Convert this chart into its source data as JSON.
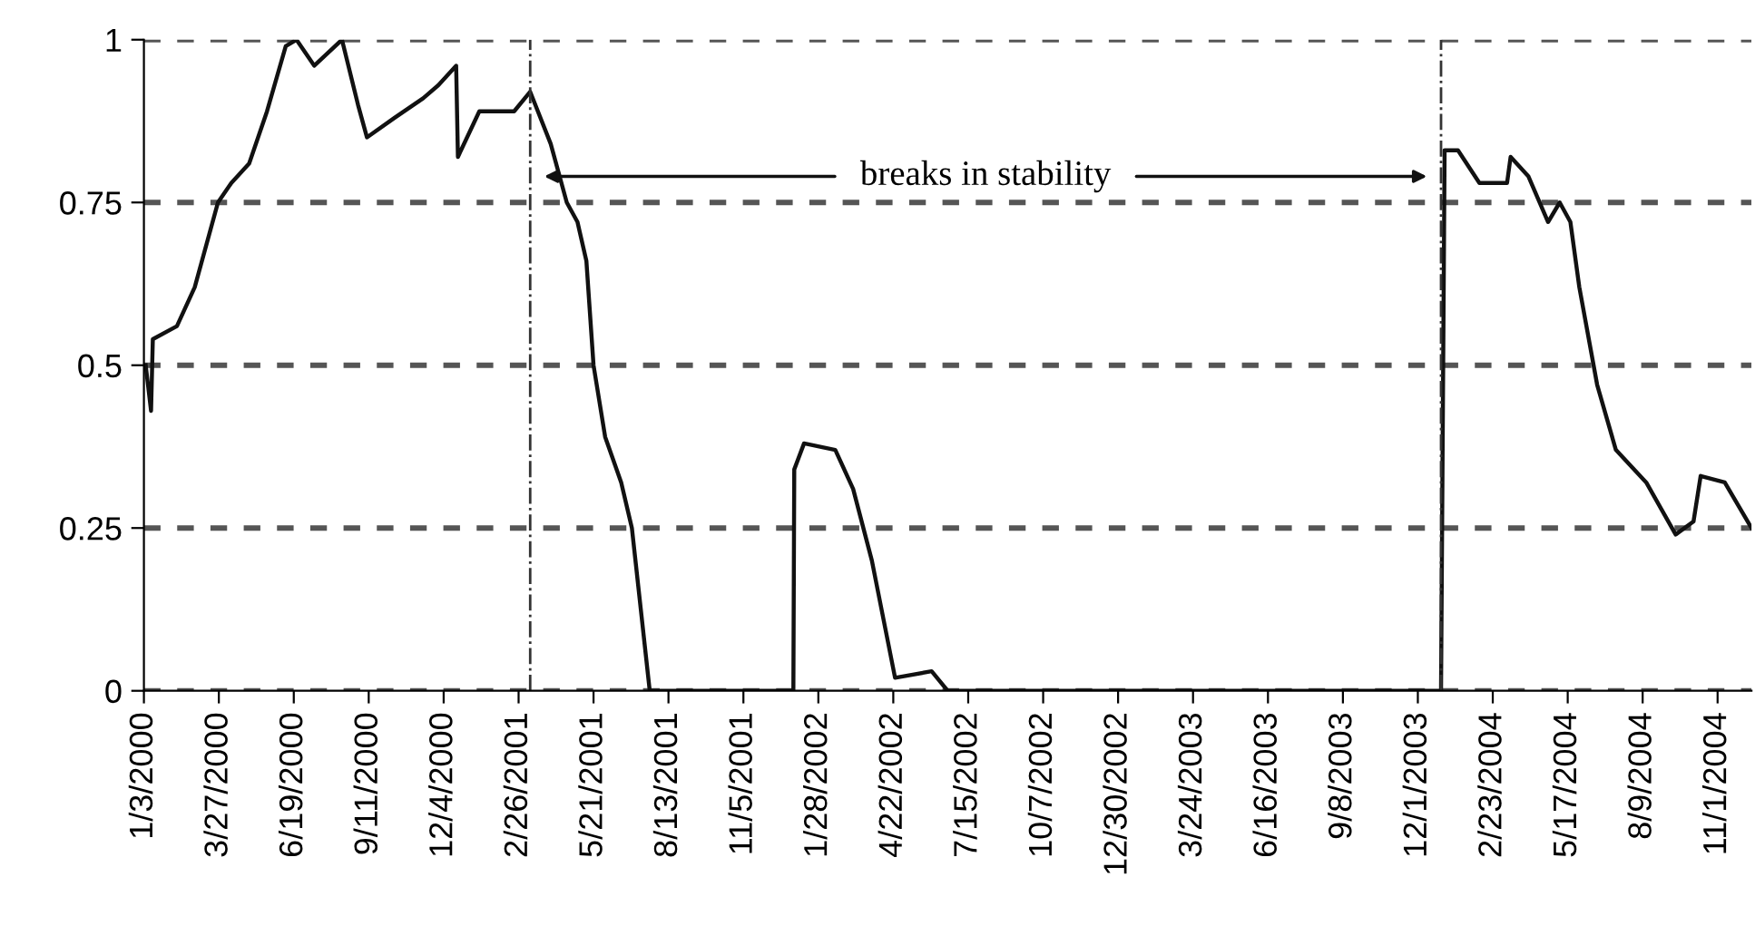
{
  "chart_data": {
    "type": "line",
    "x": [
      "2000-01-05",
      "2000-01-11",
      "2000-01-13",
      "2000-02-09",
      "2000-02-29",
      "2000-03-26",
      "2000-04-10",
      "2000-04-30",
      "2000-05-20",
      "2000-06-10",
      "2000-06-22",
      "2000-07-12",
      "2000-08-12",
      "2000-08-30",
      "2000-09-09",
      "2000-10-10",
      "2000-11-11",
      "2000-11-28",
      "2000-12-18",
      "2000-12-20",
      "2001-01-13",
      "2001-02-21",
      "2001-03-11",
      "2001-04-03",
      "2001-04-21",
      "2001-05-03",
      "2001-05-13",
      "2001-05-21",
      "2001-06-03",
      "2001-06-21",
      "2001-07-03",
      "2001-07-23",
      "2001-12-31",
      "2002-01-01",
      "2002-01-12",
      "2002-02-16",
      "2002-03-08",
      "2002-03-29",
      "2002-04-24",
      "2002-06-04",
      "2002-06-22",
      "2003-12-27",
      "2003-12-31",
      "2004-01-15",
      "2004-02-08",
      "2004-03-10",
      "2004-03-14",
      "2004-04-03",
      "2004-04-25",
      "2004-05-08",
      "2004-05-20",
      "2004-05-30",
      "2004-06-19",
      "2004-07-10",
      "2004-08-13",
      "2004-09-15",
      "2004-10-05",
      "2004-10-13",
      "2004-11-09",
      "2004-12-09"
    ],
    "series": [
      {
        "color": "#111111",
        "values": [
          0.5,
          0.43,
          0.54,
          0.56,
          0.62,
          0.75,
          0.78,
          0.81,
          0.89,
          0.99,
          1.0,
          0.96,
          1.0,
          0.9,
          0.85,
          0.88,
          0.91,
          0.93,
          0.96,
          0.82,
          0.89,
          0.89,
          0.92,
          0.84,
          0.75,
          0.72,
          0.66,
          0.5,
          0.39,
          0.32,
          0.25,
          0,
          0,
          0.34,
          0.38,
          0.37,
          0.31,
          0.2,
          0.02,
          0.03,
          0,
          0,
          0.83,
          0.83,
          0.78,
          0.78,
          0.82,
          0.79,
          0.72,
          0.75,
          0.72,
          0.62,
          0.47,
          0.37,
          0.32,
          0.24,
          0.26,
          0.33,
          0.32,
          0.25
        ]
      }
    ],
    "xlim": [
      "2000-01-03",
      "2004-12-09"
    ],
    "xticks": [
      {
        "value": "2000-01-03",
        "label": "1/3/2000"
      },
      {
        "value": "2000-03-27",
        "label": "3/27/2000"
      },
      {
        "value": "2000-06-19",
        "label": "6/19/2000"
      },
      {
        "value": "2000-09-11",
        "label": "9/11/2000"
      },
      {
        "value": "2000-12-04",
        "label": "12/4/2000"
      },
      {
        "value": "2001-02-26",
        "label": "2/26/2001"
      },
      {
        "value": "2001-05-21",
        "label": "5/21/2001"
      },
      {
        "value": "2001-08-13",
        "label": "8/13/2001"
      },
      {
        "value": "2001-11-05",
        "label": "11/5/2001"
      },
      {
        "value": "2002-01-28",
        "label": "1/28/2002"
      },
      {
        "value": "2002-04-22",
        "label": "4/22/2002"
      },
      {
        "value": "2002-07-15",
        "label": "7/15/2002"
      },
      {
        "value": "2002-10-07",
        "label": "10/7/2002"
      },
      {
        "value": "2002-12-30",
        "label": "12/30/2002"
      },
      {
        "value": "2003-03-24",
        "label": "3/24/2003"
      },
      {
        "value": "2003-06-16",
        "label": "6/16/2003"
      },
      {
        "value": "2003-09-08",
        "label": "9/8/2003"
      },
      {
        "value": "2003-12-01",
        "label": "12/1/2003"
      },
      {
        "value": "2004-02-23",
        "label": "2/23/2004"
      },
      {
        "value": "2004-05-17",
        "label": "5/17/2004"
      },
      {
        "value": "2004-08-09",
        "label": "8/9/2004"
      },
      {
        "value": "2004-11-01",
        "label": "11/1/2004"
      }
    ],
    "ylim": [
      0,
      1
    ],
    "yticks": [
      0,
      {
        "value": 0.25,
        "label": "0.25"
      },
      {
        "value": 0.5,
        "label": "0.5"
      },
      {
        "value": 0.75,
        "label": "0.75"
      },
      1
    ],
    "grid": "y",
    "ref_lines": [
      {
        "axis": "x",
        "value": "2001-03-11",
        "color": "#333333"
      },
      {
        "axis": "x",
        "value": "2003-12-27",
        "color": "#333333"
      }
    ],
    "annotations": [
      "breaks in stability"
    ]
  }
}
